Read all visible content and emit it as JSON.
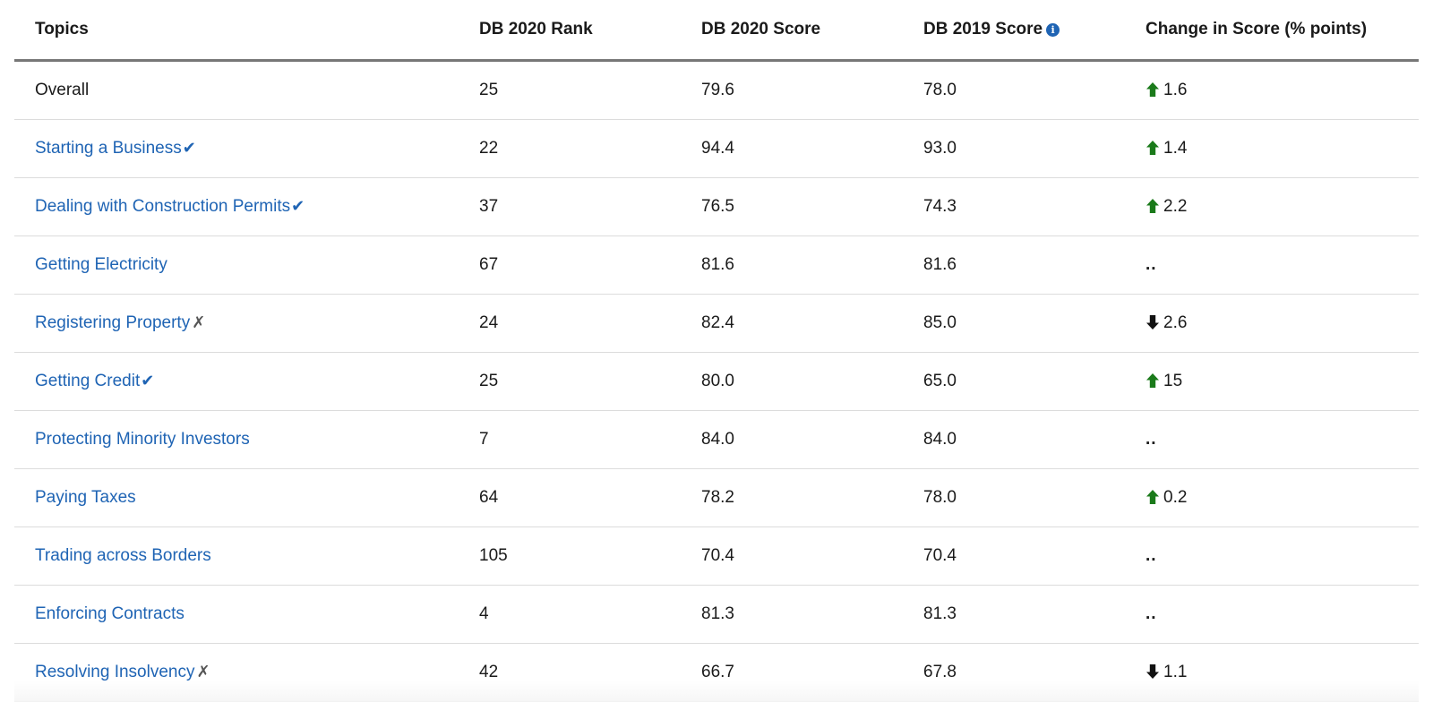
{
  "headers": {
    "topics": "Topics",
    "rank": "DB 2020 Rank",
    "score2020": "DB 2020 Score",
    "score2019": "DB 2019 Score",
    "change": "Change in Score (% points)"
  },
  "colors": {
    "link": "#1f64b4",
    "up": "#1a7a1a",
    "down": "#111111"
  },
  "rows": [
    {
      "topic": "Overall",
      "link": false,
      "mark": "",
      "rank": "25",
      "s2020": "79.6",
      "s2019": "78.0",
      "dir": "up",
      "change": "1.6"
    },
    {
      "topic": "Starting a Business",
      "link": true,
      "mark": "check",
      "rank": "22",
      "s2020": "94.4",
      "s2019": "93.0",
      "dir": "up",
      "change": "1.4"
    },
    {
      "topic": "Dealing with Construction Permits",
      "link": true,
      "mark": "check",
      "rank": "37",
      "s2020": "76.5",
      "s2019": "74.3",
      "dir": "up",
      "change": "2.2"
    },
    {
      "topic": "Getting Electricity",
      "link": true,
      "mark": "",
      "rank": "67",
      "s2020": "81.6",
      "s2019": "81.6",
      "dir": "none",
      "change": ".."
    },
    {
      "topic": "Registering Property",
      "link": true,
      "mark": "x",
      "rank": "24",
      "s2020": "82.4",
      "s2019": "85.0",
      "dir": "down",
      "change": "2.6"
    },
    {
      "topic": "Getting Credit",
      "link": true,
      "mark": "check",
      "rank": "25",
      "s2020": "80.0",
      "s2019": "65.0",
      "dir": "up",
      "change": "15"
    },
    {
      "topic": "Protecting Minority Investors",
      "link": true,
      "mark": "",
      "rank": "7",
      "s2020": "84.0",
      "s2019": "84.0",
      "dir": "none",
      "change": ".."
    },
    {
      "topic": "Paying Taxes",
      "link": true,
      "mark": "",
      "rank": "64",
      "s2020": "78.2",
      "s2019": "78.0",
      "dir": "up",
      "change": "0.2"
    },
    {
      "topic": "Trading across Borders",
      "link": true,
      "mark": "",
      "rank": "105",
      "s2020": "70.4",
      "s2019": "70.4",
      "dir": "none",
      "change": ".."
    },
    {
      "topic": "Enforcing Contracts",
      "link": true,
      "mark": "",
      "rank": "4",
      "s2020": "81.3",
      "s2019": "81.3",
      "dir": "none",
      "change": ".."
    },
    {
      "topic": "Resolving Insolvency",
      "link": true,
      "mark": "x",
      "rank": "42",
      "s2020": "66.7",
      "s2019": "67.8",
      "dir": "down",
      "change": "1.1"
    }
  ]
}
